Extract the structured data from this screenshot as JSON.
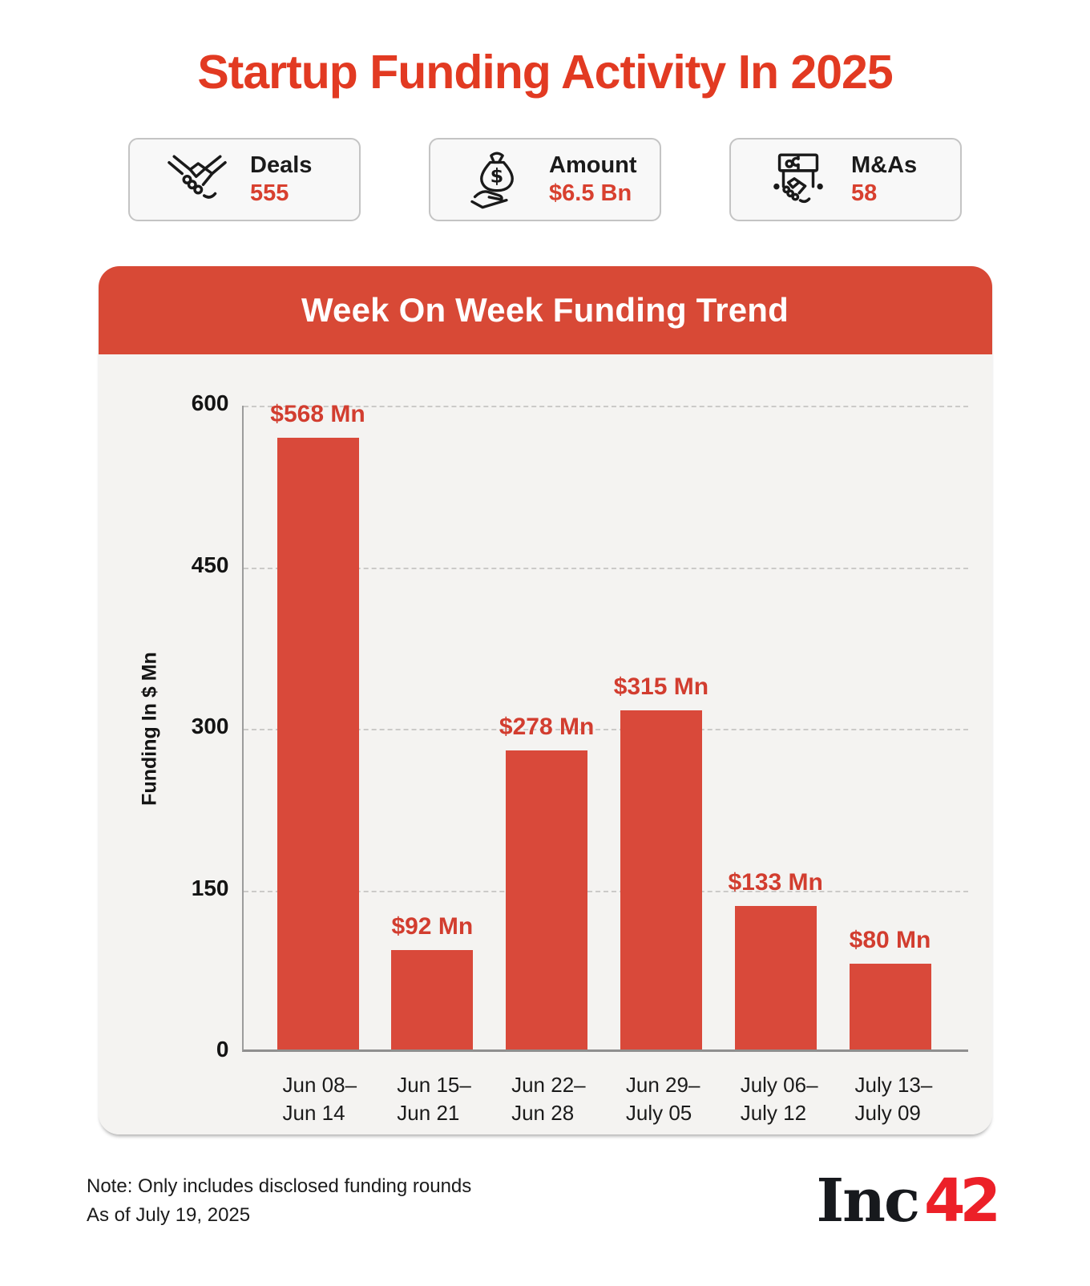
{
  "page": {
    "title": "Startup Funding Activity In 2025",
    "note_line1": "Note: Only includes disclosed funding rounds",
    "note_line2": "As of July 19, 2025",
    "logo_black": "Inc",
    "logo_red": "42"
  },
  "stats": [
    {
      "label": "Deals",
      "value": "555",
      "icon": "handshake-icon"
    },
    {
      "label": "Amount",
      "value": "$6.5 Bn",
      "icon": "money-bag-hand-icon"
    },
    {
      "label": "M&As",
      "value": "58",
      "icon": "merger-puzzle-handshake-icon"
    }
  ],
  "chart_data": {
    "type": "bar",
    "title": "Week On Week Funding Trend",
    "ylabel": "Funding In $ Mn",
    "xlabel": "",
    "ylim": [
      0,
      600
    ],
    "yticks": [
      0,
      150,
      300,
      450,
      600
    ],
    "grid": "horizontal-dashed",
    "legend": "none",
    "categories": [
      "Jun 08–\nJun 14",
      "Jun 15–\nJun 21",
      "Jun 22–\nJun 28",
      "Jun 29–\nJuly 05",
      "July 06–\nJuly 12",
      "July 13–\nJuly 09"
    ],
    "values": [
      568,
      92,
      278,
      315,
      133,
      80
    ],
    "value_labels": [
      "$568 Mn",
      "$92 Mn",
      "$278 Mn",
      "$315 Mn",
      "$133 Mn",
      "$80 Mn"
    ],
    "bar_color": "#D9493A"
  },
  "colors": {
    "accent_red": "#E23A22",
    "panel_header_red": "#D84936",
    "bar_red": "#D9493A",
    "value_label_red": "#D23D2F",
    "stat_value_red": "#D8402F",
    "logo_red": "#EC2028",
    "panel_bg": "#F4F3F1",
    "card_bg": "#F8F8F8",
    "page_bg": "#FFFFFF"
  }
}
